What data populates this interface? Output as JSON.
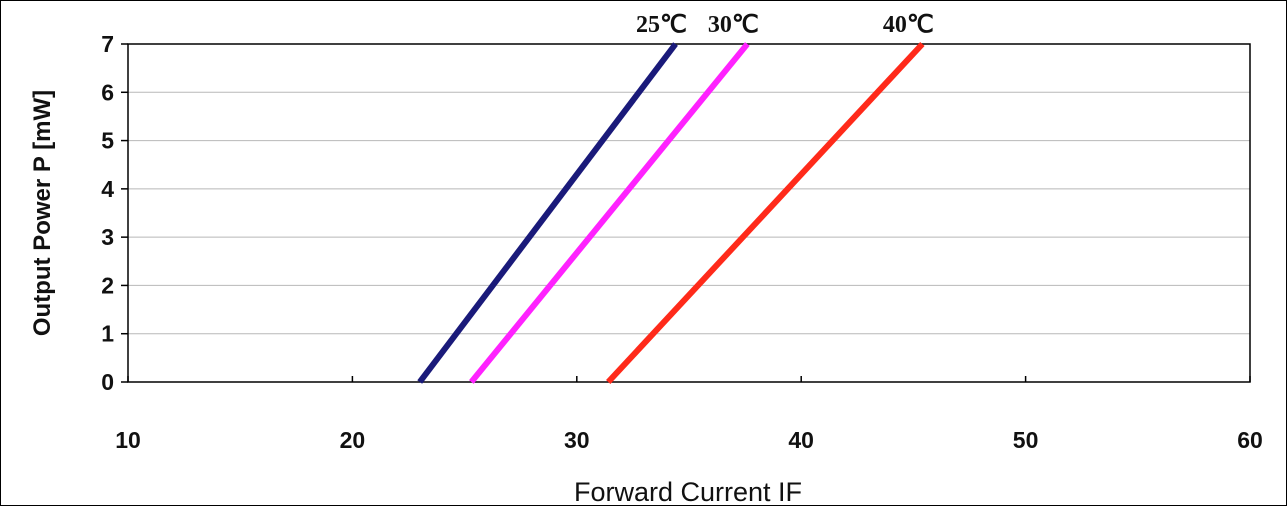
{
  "chart_data": {
    "type": "line",
    "title": "",
    "xlabel": "Forward Current  IF",
    "ylabel": "Output Power  P [mW]",
    "xlim": [
      10,
      60
    ],
    "ylim": [
      0,
      7
    ],
    "x_ticks": [
      "10",
      "20",
      "30",
      "40",
      "50",
      "60"
    ],
    "y_ticks": [
      "0",
      "1",
      "2",
      "3",
      "4",
      "5",
      "6",
      "7"
    ],
    "grid": "horizontal",
    "legend": "inline labels at top of each line",
    "series": [
      {
        "name": "25℃",
        "color": "#1a1a7a",
        "x": [
          23.0,
          34.4
        ],
        "y": [
          0,
          7
        ]
      },
      {
        "name": "30℃",
        "color": "#ff22ff",
        "x": [
          25.3,
          37.6
        ],
        "y": [
          0,
          7
        ]
      },
      {
        "name": "40℃",
        "color": "#ff2a1a",
        "x": [
          31.4,
          45.4
        ],
        "y": [
          0,
          7
        ]
      }
    ]
  }
}
